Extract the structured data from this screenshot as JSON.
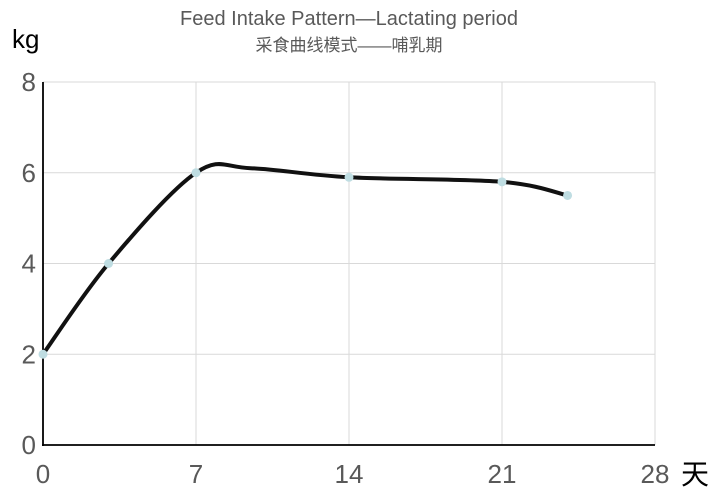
{
  "chart_data": {
    "type": "line",
    "title": "Feed Intake Pattern—Lactating period",
    "subtitle": "采食曲线模式——哺乳期",
    "xlabel": "天",
    "ylabel": "kg",
    "x": [
      0,
      3,
      7,
      14,
      21,
      24
    ],
    "y": [
      2,
      4,
      6,
      5.9,
      5.8,
      5.5
    ],
    "smooth_shape_points": {
      "x": [
        0,
        3,
        7,
        9.5,
        14,
        21,
        24
      ],
      "y": [
        2,
        4,
        6,
        6.1,
        5.9,
        5.8,
        5.5
      ]
    },
    "xlim": [
      0,
      28
    ],
    "ylim": [
      0,
      8
    ],
    "x_ticks": [
      0,
      7,
      14,
      21,
      28
    ],
    "y_ticks": [
      0,
      2,
      4,
      6,
      8
    ],
    "grid": true,
    "legend": false,
    "style": {
      "line_color": "#111111",
      "line_width": 4,
      "marker_color": "#bfdde2",
      "marker_radius": 4.5,
      "grid_color": "#d9d9d9",
      "axis_color": "#000000",
      "tick_color": "#595959",
      "title_color": "#595959",
      "unit_label_color": "#000000",
      "background": "#ffffff"
    }
  }
}
